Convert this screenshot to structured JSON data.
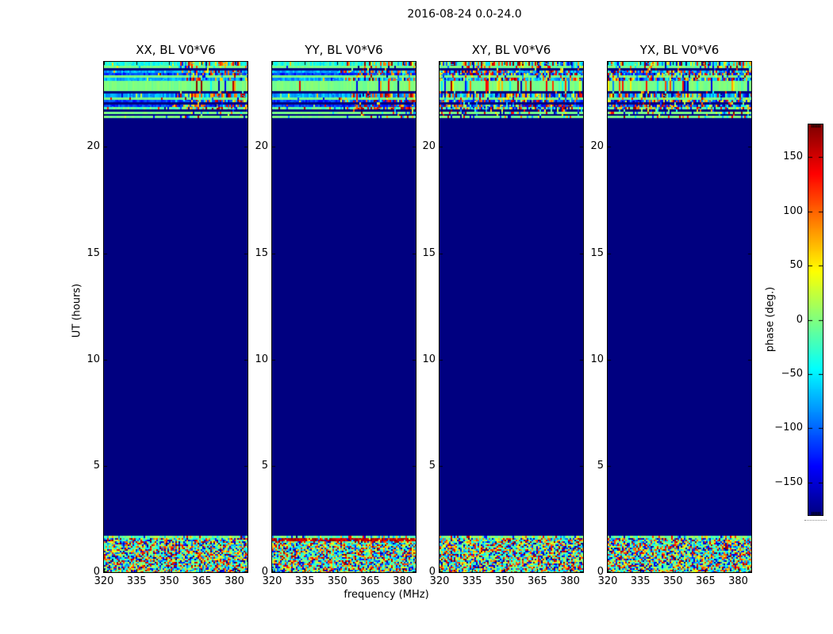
{
  "chart_data": {
    "type": "heatmap",
    "title": "2016-08-24 0.0-24.0",
    "xlabel": "frequency (MHz)",
    "ylabel": "UT (hours)",
    "colorbar_label": "phase (deg.)",
    "colormap": "jet",
    "x_range_mhz": [
      320,
      386
    ],
    "y_range_hours": [
      0,
      24
    ],
    "x_ticks": [
      {
        "v": 320,
        "label": "320"
      },
      {
        "v": 335,
        "label": "335"
      },
      {
        "v": 350,
        "label": "350"
      },
      {
        "v": 365,
        "label": "365"
      },
      {
        "v": 380,
        "label": "380"
      }
    ],
    "y_ticks": [
      {
        "v": 0,
        "label": "0"
      },
      {
        "v": 5,
        "label": "5"
      },
      {
        "v": 10,
        "label": "10"
      },
      {
        "v": 15,
        "label": "15"
      },
      {
        "v": 20,
        "label": "20"
      }
    ],
    "colorbar_range_deg": [
      -180,
      180
    ],
    "colorbar_ticks": [
      {
        "v": 150,
        "label": "150"
      },
      {
        "v": 100,
        "label": "100"
      },
      {
        "v": 50,
        "label": "50"
      },
      {
        "v": 0,
        "label": "0"
      },
      {
        "v": -50,
        "label": "−50"
      },
      {
        "v": -100,
        "label": "−100"
      },
      {
        "v": -150,
        "label": "−150"
      }
    ],
    "panels": [
      {
        "label": "XX, BL V0*V6",
        "pol": "XX",
        "style": "parallel",
        "seed": 101,
        "red_stripe_bottom": false
      },
      {
        "label": "YY, BL V0*V6",
        "pol": "YY",
        "style": "parallel",
        "seed": 202,
        "red_stripe_bottom": true
      },
      {
        "label": "XY, BL V0*V6",
        "pol": "XY",
        "style": "cross",
        "seed": 303,
        "red_stripe_bottom": false
      },
      {
        "label": "YX, BL V0*V6",
        "pol": "YX",
        "style": "cross",
        "seed": 404,
        "red_stripe_bottom": false
      }
    ],
    "quiet_region": {
      "t_start": 1.7,
      "t_end": 21.35,
      "phase_deg": -180,
      "color": "#000080"
    },
    "top_band": {
      "t_start": 21.35,
      "t_end": 24.0,
      "rows": [
        {
          "h": 5,
          "t": "mixA"
        },
        {
          "h": 3,
          "t": "green"
        },
        {
          "h": 3,
          "t": "navy"
        },
        {
          "h": 3,
          "t": "cyanN"
        },
        {
          "h": 3,
          "t": "blueN"
        },
        {
          "h": 3,
          "t": "green"
        },
        {
          "h": 4,
          "t": "cyanN"
        },
        {
          "h": 13,
          "t": "green"
        },
        {
          "h": 3,
          "t": "navy"
        },
        {
          "h": 5,
          "t": "cyanN"
        },
        {
          "h": 3,
          "t": "green"
        },
        {
          "h": 3,
          "t": "blueN"
        },
        {
          "h": 3,
          "t": "navy"
        },
        {
          "h": 3,
          "t": "blueN"
        },
        {
          "h": 3,
          "t": "greenN"
        },
        {
          "h": 3,
          "t": "navy"
        },
        {
          "h": 3,
          "t": "green"
        },
        {
          "h": 2,
          "t": "navy"
        },
        {
          "h": 3,
          "t": "green"
        }
      ]
    },
    "bottom_band": {
      "t_start": 0.0,
      "t_end": 1.7,
      "green_top_row": true,
      "yy_red_stripe_phase_deg": 160
    },
    "colors": {
      "quiet_navy": "#000080",
      "frame": "#000000",
      "background": "#ffffff"
    }
  }
}
